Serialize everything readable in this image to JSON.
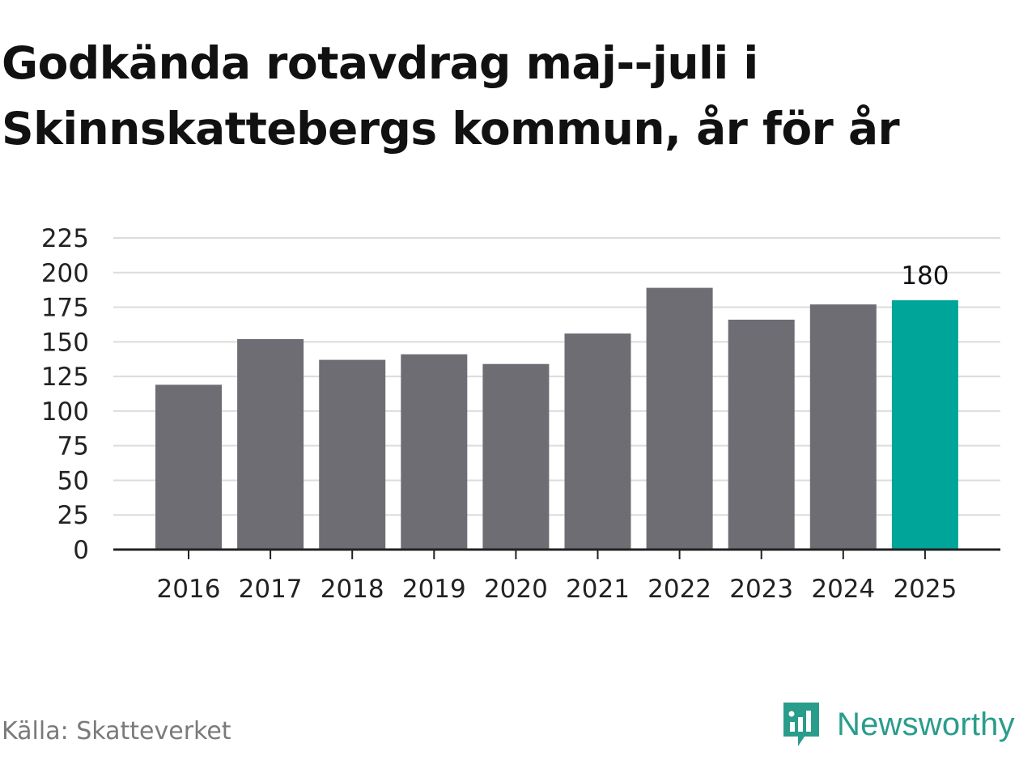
{
  "title": "Godkända rotavdrag maj--juli i Skinnskattebergs kommun, år för år",
  "source": "Källa: Skatteverket",
  "brand": {
    "name": "Newsworthy",
    "icon": "newsworthy-logo-icon",
    "color": "#2a9c8c"
  },
  "colors": {
    "bar": "#6e6d74",
    "highlight": "#00a59a",
    "grid": "#dcdcdc",
    "axis": "#222222"
  },
  "chart_data": {
    "type": "bar",
    "title": "Godkända rotavdrag maj--juli i Skinnskattebergs kommun, år för år",
    "xlabel": "",
    "ylabel": "",
    "categories": [
      "2016",
      "2017",
      "2018",
      "2019",
      "2020",
      "2021",
      "2022",
      "2023",
      "2024",
      "2025"
    ],
    "values": [
      119,
      152,
      137,
      141,
      134,
      156,
      189,
      166,
      177,
      180
    ],
    "highlight_index": 9,
    "data_labels": [
      {
        "index": 9,
        "text": "180"
      }
    ],
    "ylim": [
      0,
      225
    ],
    "yticks": [
      0,
      25,
      50,
      75,
      100,
      125,
      150,
      175,
      200,
      225
    ],
    "grid": true,
    "legend": "none"
  }
}
